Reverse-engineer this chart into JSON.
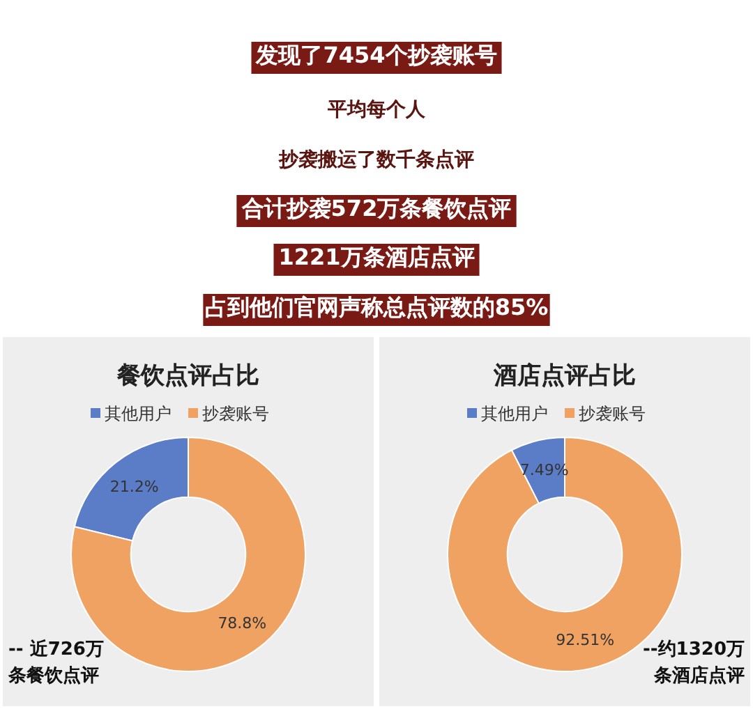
{
  "chart_data": [
    {
      "type": "donut",
      "title": "餐饮点评占比",
      "categories": [
        "其他用户",
        "抄袭账号"
      ],
      "values": [
        21.2,
        78.8
      ],
      "value_labels": [
        "21.2%",
        "78.8%"
      ],
      "colors": [
        "#5b7cc6",
        "#f0a262"
      ],
      "legend": "top",
      "annotations": [
        "发现了7454个抄袭账号",
        "平均每个人",
        "抄袭搬运了数千条点评",
        "合计抄袭572万条餐饮点评",
        "1221万条酒店点评",
        "占到他们官网声称总点评数的85%",
        "-- 近726万",
        "条餐饮点评"
      ]
    },
    {
      "type": "donut",
      "title": "酒店点评占比",
      "categories": [
        "其他用户",
        "抄袭账号"
      ],
      "values": [
        7.49,
        92.51
      ],
      "value_labels": [
        "7.49%",
        "92.51%"
      ],
      "colors": [
        "#5b7cc6",
        "#f0a262"
      ],
      "legend": "top",
      "annotations": [
        "--约1320万",
        "条酒店点评"
      ]
    }
  ]
}
